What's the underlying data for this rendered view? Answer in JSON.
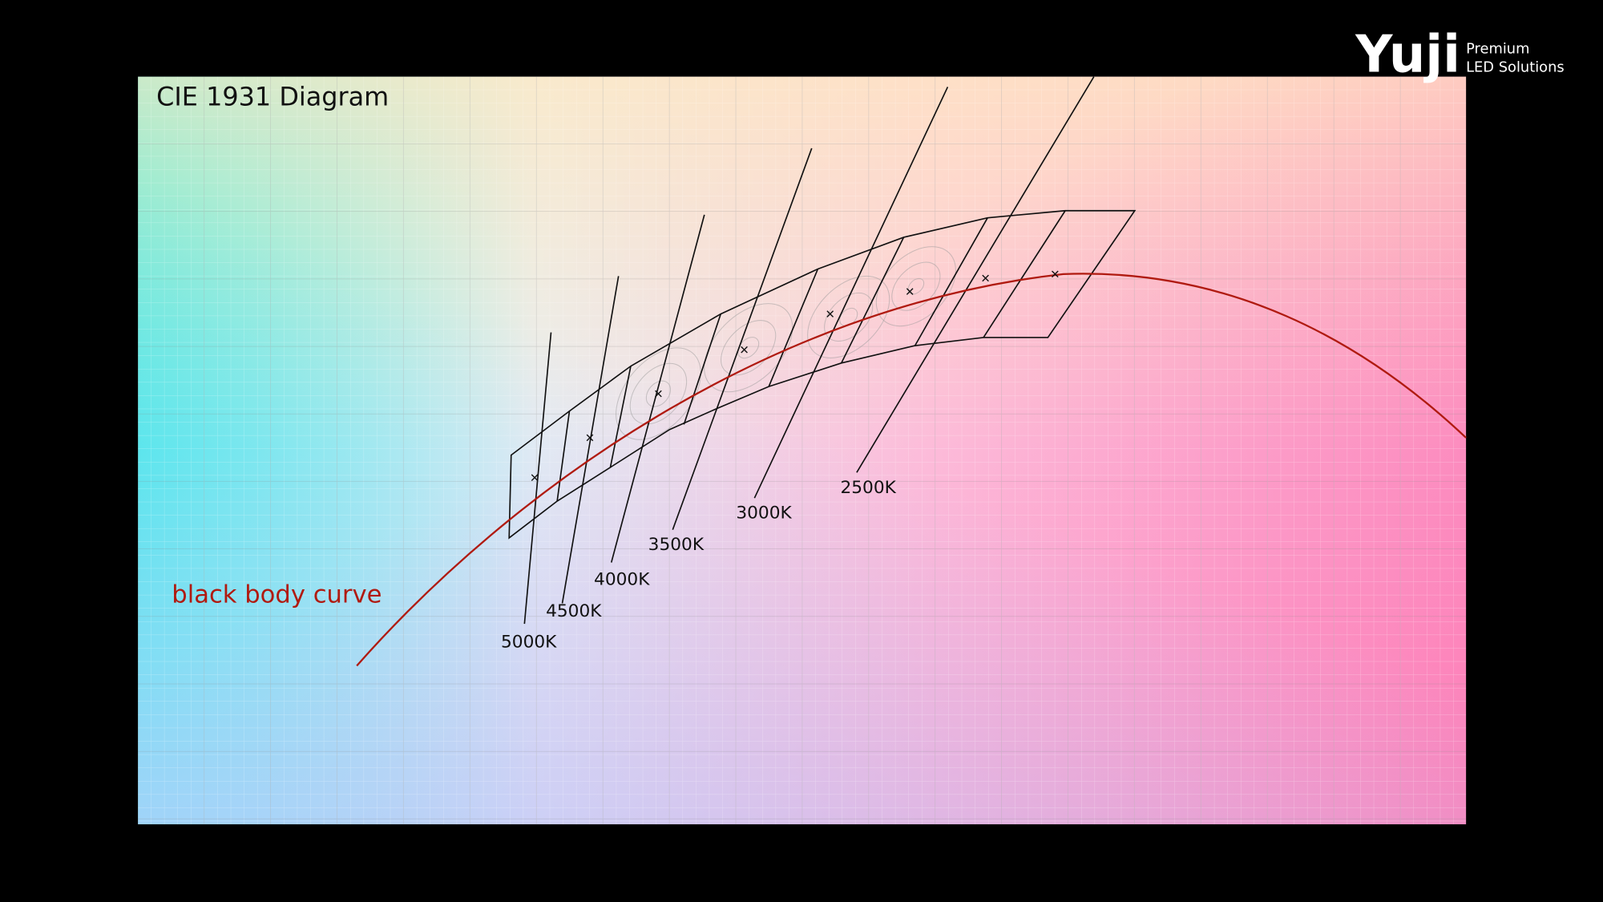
{
  "title": "CIE 1931 Diagram",
  "curve_label": "black body curve",
  "cct_labels": [
    "5000K",
    "4500K",
    "4000K",
    "3500K",
    "3000K",
    "2500K"
  ],
  "logo": {
    "name": "Yuji",
    "tagline": [
      "Premium",
      "LED Solutions"
    ]
  }
}
